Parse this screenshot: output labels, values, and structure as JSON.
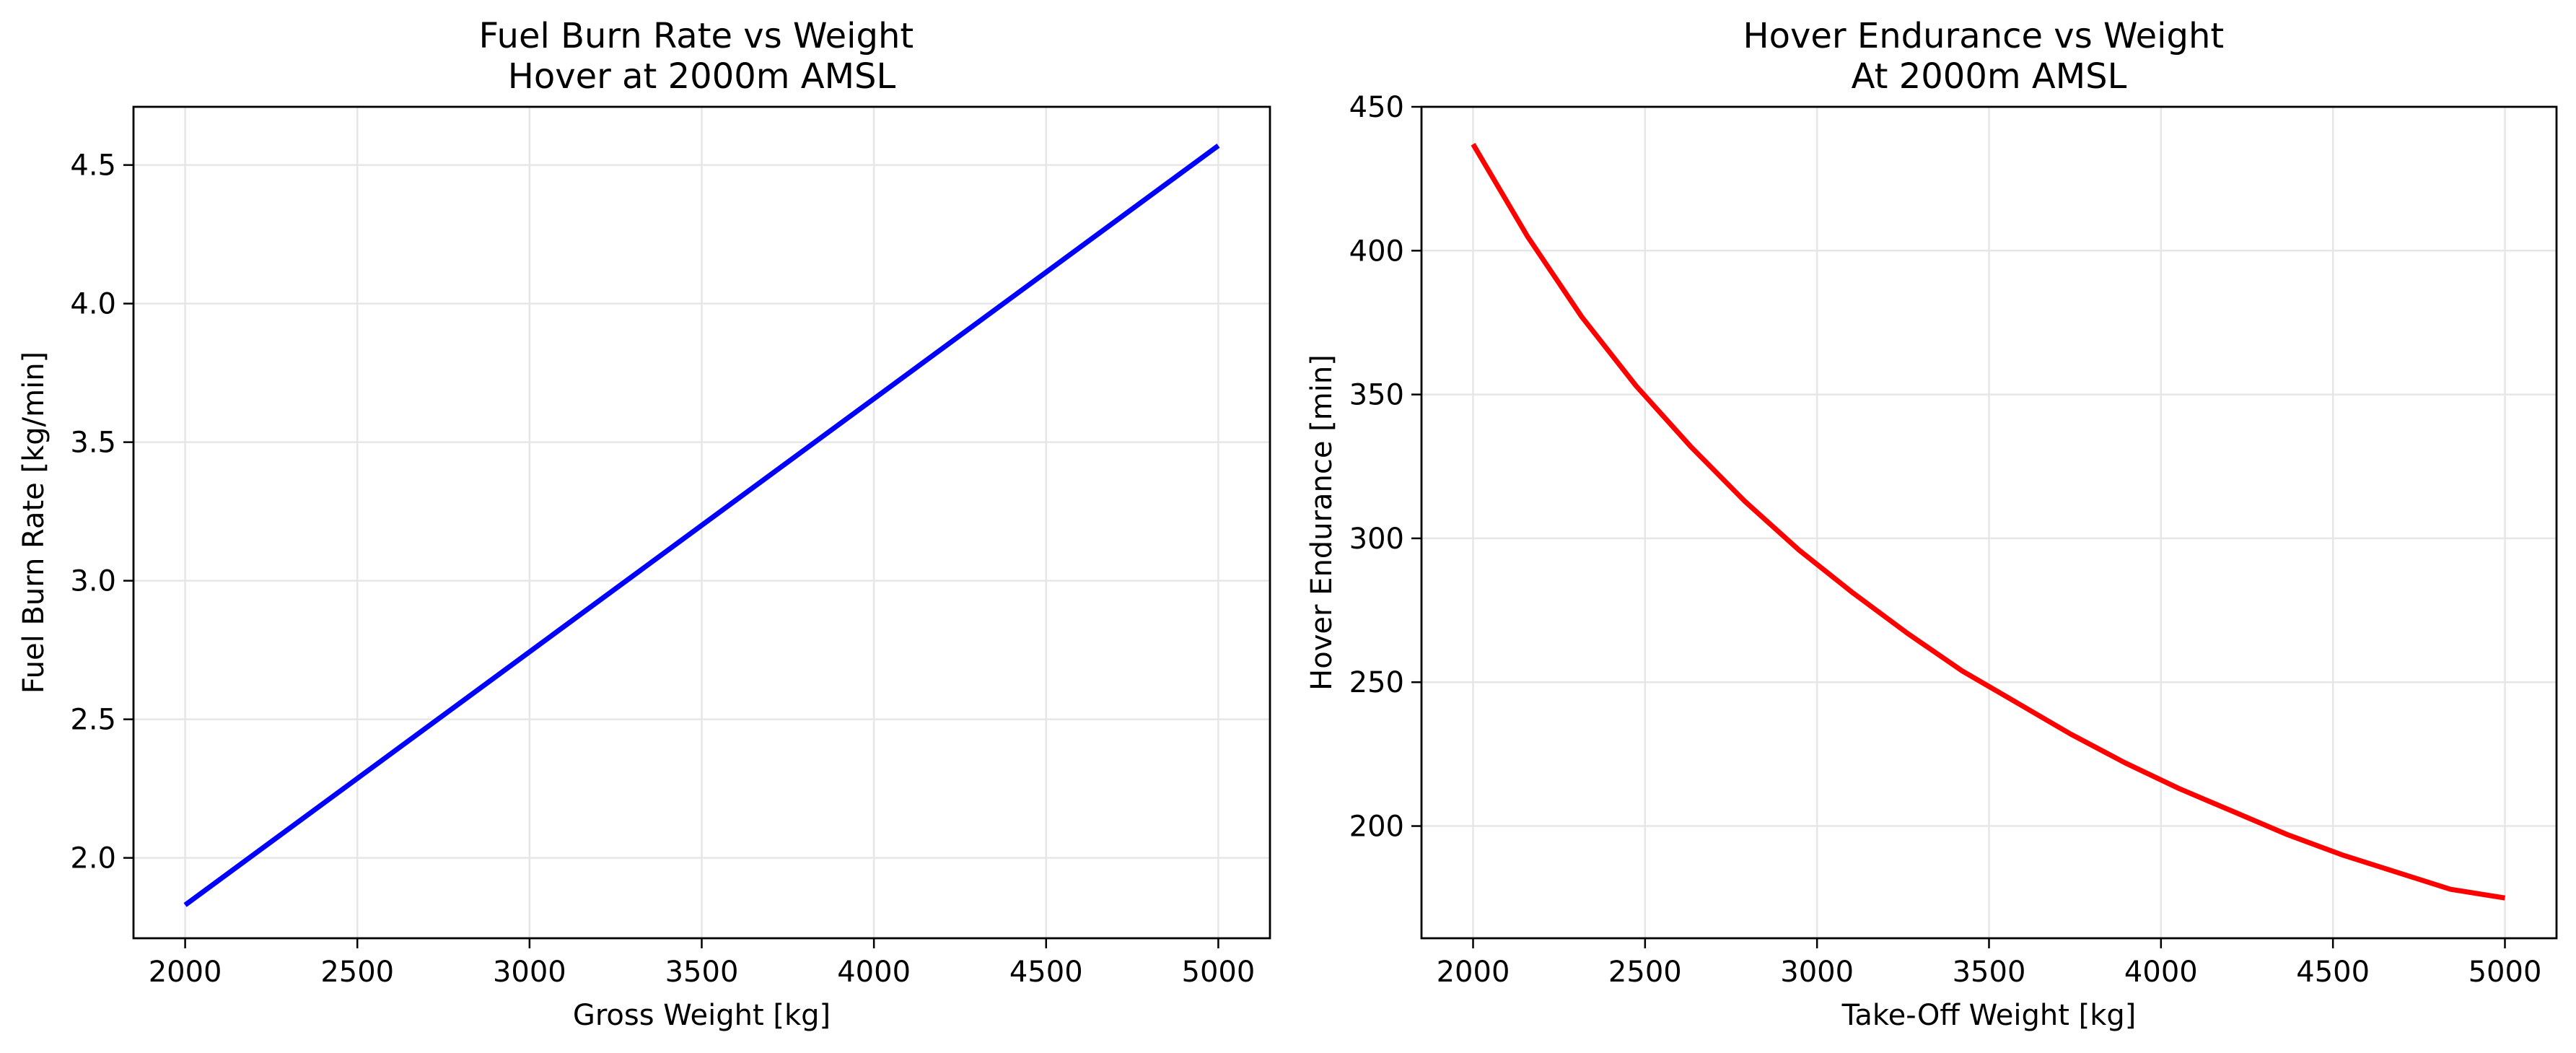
{
  "chart_data": [
    {
      "type": "line",
      "title": "Fuel Burn Rate vs Weight\nHover at 2000m AMSL",
      "xlabel": "Gross Weight [kg]",
      "ylabel": "Fuel Burn Rate [kg/min]",
      "xlim": [
        1850,
        5150
      ],
      "ylim": [
        1.71,
        4.71
      ],
      "xticks": [
        2000,
        2500,
        3000,
        3500,
        4000,
        4500,
        5000
      ],
      "yticks": [
        2.0,
        2.5,
        3.0,
        3.5,
        4.0,
        4.5
      ],
      "ytick_labels": [
        "2.0",
        "2.5",
        "3.0",
        "3.5",
        "4.0",
        "4.5"
      ],
      "grid": true,
      "series": [
        {
          "color": "#0000ff",
          "x": [
            2000,
            5000
          ],
          "y": [
            1.83,
            4.57
          ]
        }
      ]
    },
    {
      "type": "line",
      "title": "Hover Endurance vs Weight\nAt 2000m AMSL",
      "xlabel": "Take-Off Weight [kg]",
      "ylabel": "Hover Endurance [min]",
      "xlim": [
        1850,
        5150
      ],
      "ylim": [
        161,
        450
      ],
      "xticks": [
        2000,
        2500,
        3000,
        3500,
        4000,
        4500,
        5000
      ],
      "yticks": [
        200,
        250,
        300,
        350,
        400,
        450
      ],
      "ytick_labels": [
        "200",
        "250",
        "300",
        "350",
        "400",
        "450"
      ],
      "grid": true,
      "series": [
        {
          "color": "#ff0000",
          "x": [
            2000,
            2158,
            2316,
            2474,
            2632,
            2789,
            2947,
            3105,
            3263,
            3421,
            3579,
            3737,
            3895,
            4053,
            4211,
            4368,
            4526,
            4684,
            4842,
            5000
          ],
          "y": [
            437,
            405,
            377,
            353,
            332,
            313,
            296,
            281,
            267,
            254,
            243,
            232,
            222,
            213,
            205,
            197,
            190,
            184,
            178,
            175
          ]
        }
      ]
    }
  ]
}
